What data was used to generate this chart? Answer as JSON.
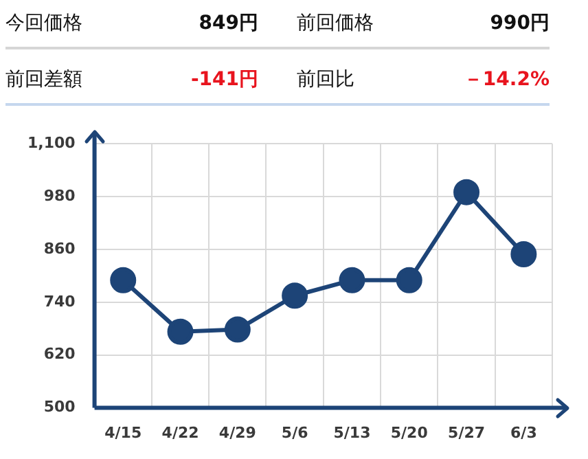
{
  "chart_data": {
    "type": "line",
    "annotations": [
      "今回価格",
      "849円",
      "前回価格",
      "990円",
      "前回差額",
      "-141円",
      "前回比",
      "－14.2%"
    ],
    "categories": [
      "4/15",
      "4/22",
      "4/29",
      "5/6",
      "5/13",
      "5/20",
      "5/27",
      "6/3"
    ],
    "series": [
      {
        "color": "#1d4477",
        "values": [
          790,
          673,
          678,
          755,
          790,
          790,
          990,
          849
        ]
      }
    ],
    "ylim": [
      500,
      1100
    ],
    "yticks": [
      500,
      620,
      740,
      860,
      980,
      {
        "value": 1100,
        "label": "1,100"
      }
    ],
    "grid": true,
    "legend": false,
    "marker": "circle",
    "line_style": "solid"
  }
}
